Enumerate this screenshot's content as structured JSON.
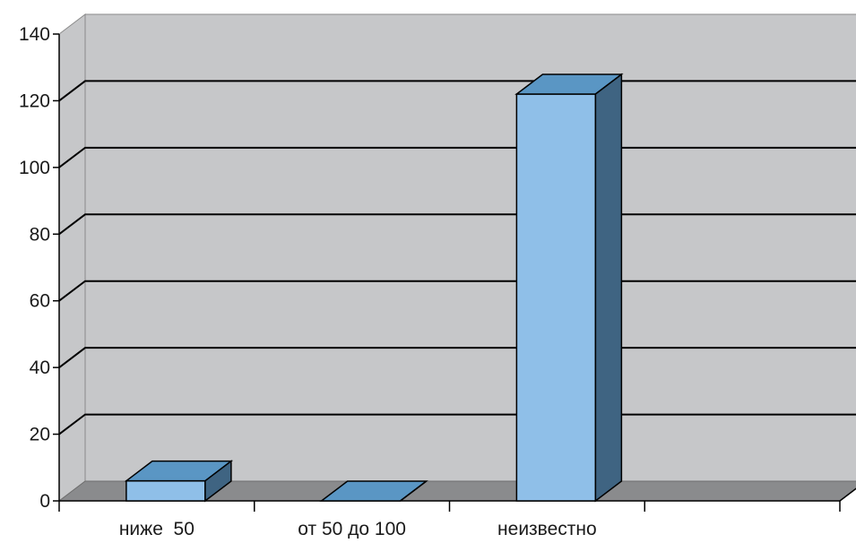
{
  "chart_data": {
    "type": "bar",
    "style": "3d-column",
    "categories": [
      "ниже  50",
      "от 50 до 100",
      "неизвестно",
      ""
    ],
    "values": [
      6,
      0,
      122,
      null
    ],
    "ylim": [
      0,
      140
    ],
    "yticks": [
      0,
      20,
      40,
      60,
      80,
      100,
      120,
      140
    ],
    "title": "",
    "xlabel": "",
    "ylabel": "",
    "grid": true,
    "legend": "none",
    "colors": {
      "bar_front": "#8fbfe8",
      "bar_top": "#5a96c4",
      "bar_side": "#3f6482",
      "wall": "#c6c7c9",
      "floor": "#8a8b8d",
      "gridline": "#000000"
    }
  }
}
